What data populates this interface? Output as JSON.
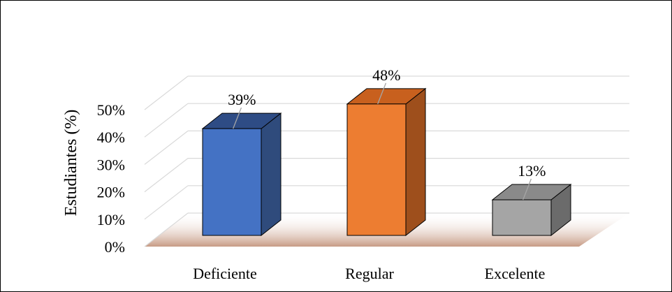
{
  "chart_data": {
    "type": "bar",
    "categories": [
      "Deficiente",
      "Regular",
      "Excelente"
    ],
    "values": [
      39,
      48,
      13
    ],
    "data_labels": [
      "39%",
      "48%",
      "13%"
    ],
    "ylabel": "Estudiantes (%)",
    "xlabel": "",
    "title": "",
    "ylim": [
      0,
      50
    ],
    "yticks": [
      "0%",
      "10%",
      "20%",
      "30%",
      "40%",
      "50%"
    ],
    "grid": true,
    "legend": "none",
    "style": "3d-column",
    "colors": {
      "Deficiente": {
        "front": "#4472C4",
        "side": "#2F4B7C",
        "top": "#2E4C85"
      },
      "Regular": {
        "front": "#ED7D31",
        "side": "#9E4F1C",
        "top": "#C8601E"
      },
      "Excelente": {
        "front": "#A5A5A5",
        "side": "#6B6B6B",
        "top": "#8A8A8A"
      },
      "floor": "#C79B85",
      "gridline": "#D9D9D9"
    }
  }
}
